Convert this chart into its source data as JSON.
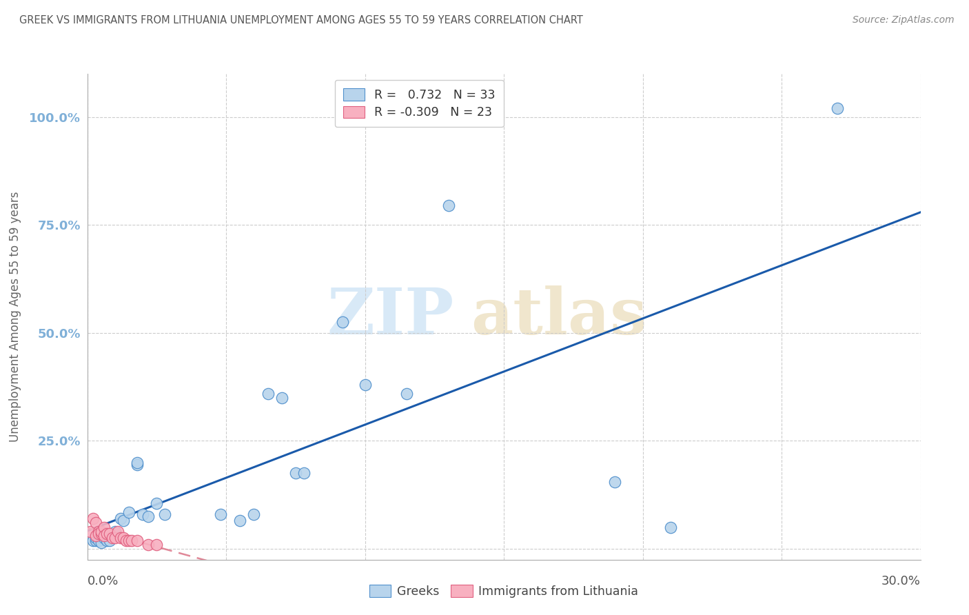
{
  "title": "GREEK VS IMMIGRANTS FROM LITHUANIA UNEMPLOYMENT AMONG AGES 55 TO 59 YEARS CORRELATION CHART",
  "source": "Source: ZipAtlas.com",
  "ylabel": "Unemployment Among Ages 55 to 59 years",
  "watermark_zip": "ZIP",
  "watermark_atlas": "atlas",
  "greek_R": 0.732,
  "greek_N": 33,
  "lith_R": -0.309,
  "lith_N": 23,
  "xlim": [
    0.0,
    0.3
  ],
  "ylim": [
    -0.025,
    1.1
  ],
  "yticks": [
    0.0,
    0.25,
    0.5,
    0.75,
    1.0
  ],
  "ytick_labels": [
    "",
    "25.0%",
    "50.0%",
    "75.0%",
    "100.0%"
  ],
  "greek_face": "#b8d4ec",
  "greek_edge": "#5090cc",
  "lith_face": "#f8b0c0",
  "lith_edge": "#e06080",
  "greek_line": "#1a5aaa",
  "lith_line": "#e08898",
  "ytick_color": "#80b0d8",
  "title_color": "#555555",
  "source_color": "#888888",
  "ylabel_color": "#666666",
  "grid_color": "#cccccc",
  "spine_color": "#aaaaaa",
  "watermark_color": "#c8e0f4",
  "greek_x": [
    0.002,
    0.003,
    0.003,
    0.004,
    0.005,
    0.005,
    0.006,
    0.007,
    0.008,
    0.01,
    0.012,
    0.013,
    0.015,
    0.018,
    0.018,
    0.02,
    0.022,
    0.025,
    0.028,
    0.048,
    0.055,
    0.06,
    0.065,
    0.07,
    0.075,
    0.078,
    0.092,
    0.1,
    0.115,
    0.13,
    0.19,
    0.21,
    0.27
  ],
  "greek_y": [
    0.02,
    0.02,
    0.025,
    0.02,
    0.025,
    0.015,
    0.025,
    0.02,
    0.02,
    0.04,
    0.07,
    0.065,
    0.085,
    0.195,
    0.2,
    0.08,
    0.075,
    0.105,
    0.08,
    0.08,
    0.065,
    0.08,
    0.36,
    0.35,
    0.175,
    0.175,
    0.525,
    0.38,
    0.36,
    0.795,
    0.155,
    0.05,
    1.02
  ],
  "lith_x": [
    0.001,
    0.002,
    0.003,
    0.003,
    0.004,
    0.004,
    0.005,
    0.005,
    0.006,
    0.006,
    0.007,
    0.008,
    0.009,
    0.01,
    0.011,
    0.012,
    0.013,
    0.014,
    0.015,
    0.016,
    0.018,
    0.022,
    0.025
  ],
  "lith_y": [
    0.04,
    0.07,
    0.03,
    0.06,
    0.04,
    0.035,
    0.035,
    0.04,
    0.05,
    0.03,
    0.035,
    0.035,
    0.025,
    0.025,
    0.04,
    0.025,
    0.025,
    0.02,
    0.02,
    0.02,
    0.02,
    0.01,
    0.01
  ]
}
